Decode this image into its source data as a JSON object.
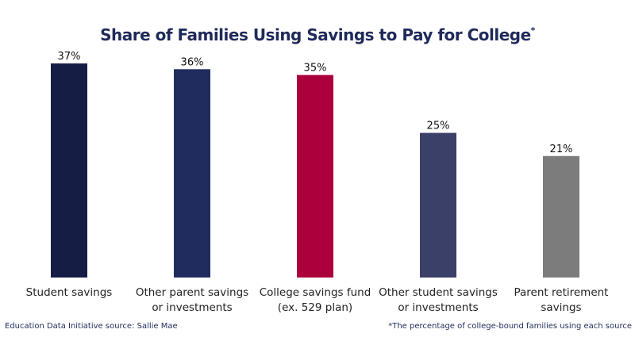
{
  "chart_data": {
    "type": "bar",
    "title": "Share of Families Using Savings to Pay for College",
    "title_mark": "*",
    "categories": [
      [
        "Student savings"
      ],
      [
        "Other parent savings",
        "or investments"
      ],
      [
        "College savings fund",
        "(ex. 529 plan)"
      ],
      [
        "Other student savings",
        "or investments"
      ],
      [
        "Parent retirement",
        "savings"
      ]
    ],
    "values": [
      37,
      36,
      35,
      25,
      21
    ],
    "value_labels": [
      "37%",
      "36%",
      "35%",
      "25%",
      "21%"
    ],
    "colors": [
      "#161d45",
      "#212c5e",
      "#ab003c",
      "#3a4068",
      "#7c7c7c"
    ],
    "ylim": [
      0,
      37
    ],
    "xlabel": "",
    "ylabel": "",
    "grid": false,
    "legend": "none"
  },
  "footer": {
    "source": "Education Data Initiative source: Sallie Mae",
    "note": "*The percentage of college-bound families using each source"
  }
}
